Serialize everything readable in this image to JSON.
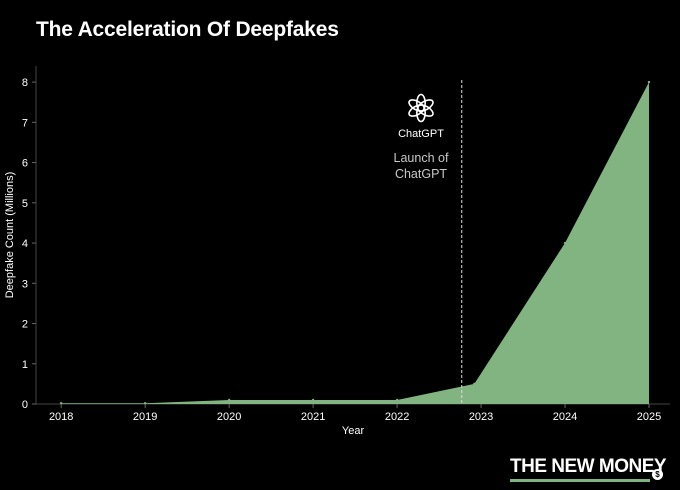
{
  "title": "The Acceleration Of Deepfakes",
  "chart_data": {
    "type": "area",
    "title": "The Acceleration Of Deepfakes",
    "xlabel": "Year",
    "ylabel": "Deepfake Count (Millions)",
    "x": [
      2018,
      2019,
      2020,
      2021,
      2022,
      2023,
      2024,
      2025
    ],
    "points": [
      {
        "x": 2018,
        "y": 0.02
      },
      {
        "x": 2019,
        "y": 0.02
      },
      {
        "x": 2020,
        "y": 0.1
      },
      {
        "x": 2021,
        "y": 0.1
      },
      {
        "x": 2022,
        "y": 0.1
      },
      {
        "x": 2022.92,
        "y": 0.5
      },
      {
        "x": 2024,
        "y": 4.0
      },
      {
        "x": 2025,
        "y": 8.0
      }
    ],
    "xlim": [
      2017.7,
      2025.25
    ],
    "ylim": [
      0,
      8.4
    ],
    "yticks": [
      0,
      1,
      2,
      3,
      4,
      5,
      6,
      7,
      8
    ],
    "grid": false,
    "fill_color": "#82b482",
    "annotation": {
      "x": 2022.77,
      "logo_text": "ChatGPT",
      "text_line1": "Launch of",
      "text_line2": "ChatGPT"
    }
  },
  "brand": {
    "name": "THE NEW MONEY",
    "coin_symbol": "$",
    "accent_color": "#7fb37f"
  }
}
